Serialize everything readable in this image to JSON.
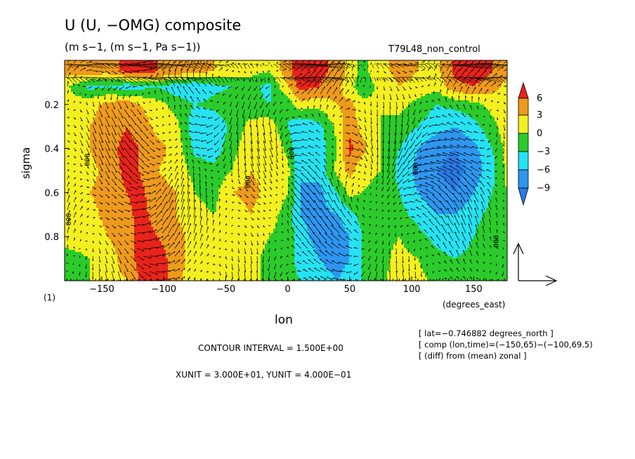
{
  "title": "U (U, −OMG) composite",
  "subtitle": "(m s−1, (m s−1, Pa s−1))",
  "run_label": "T79L48_non_control",
  "panel_label": "(1)",
  "contour_interval": "CONTOUR INTERVAL = 1.500E+00",
  "vector_units": "XUNIT = 3.000E+01, YUNIT = 4.000E−01",
  "info_lines": [
    "[ lat=−0.746882 degrees_north ]",
    "[ comp (lon,time)=(−150,65)−(−100,69.5)",
    "[ (diff) from (mean) zonal ]"
  ],
  "colors": {
    "lt_-9": "#2a7be6",
    "-9_-6": "#2f96f0",
    "-6_-3": "#26e2f2",
    "-3_0": "#2ccb2c",
    "0_3": "#f4f020",
    "3_6": "#ee9a1d",
    "gt_6": "#e8231c"
  },
  "chart_data": {
    "type": "heatmap",
    "title": "U (U, −OMG) composite",
    "subtitle": "(m s−1, (m s−1, Pa s−1))",
    "xlabel": "lon",
    "xunit_label": "(degrees_east)",
    "ylabel": "sigma",
    "xlim": [
      -180,
      177
    ],
    "ylim": [
      1.0,
      0.0
    ],
    "xticks": [
      -150,
      -100,
      -50,
      0,
      50,
      100,
      150
    ],
    "yticks": [
      0.2,
      0.4,
      0.6,
      0.8
    ],
    "colorbar": {
      "levels": [
        -9,
        -6,
        -3,
        0,
        3,
        6
      ],
      "labels": [
        "6",
        "3",
        "0",
        "−3",
        "−6",
        "−9"
      ]
    },
    "contour_label": "000",
    "lon_grid": [
      -180,
      -160,
      -145,
      -130,
      -120,
      -105,
      -90,
      -75,
      -60,
      -45,
      -30,
      -15,
      0,
      10,
      25,
      40,
      50,
      60,
      75,
      90,
      105,
      120,
      135,
      150,
      165,
      177
    ],
    "sigma_grid": [
      0.05,
      0.12,
      0.2,
      0.3,
      0.4,
      0.5,
      0.6,
      0.7,
      0.8,
      0.9,
      1.0
    ],
    "values": [
      [
        4,
        5,
        4,
        7,
        8,
        6,
        5,
        4,
        3,
        2,
        1,
        0,
        5,
        8,
        7,
        5,
        2,
        -1,
        2,
        4,
        3,
        2,
        7,
        8,
        6,
        4
      ],
      [
        1,
        -4,
        -3,
        -5,
        -4,
        -3,
        -5,
        -6,
        -4,
        -3,
        -2,
        -4,
        3,
        7,
        6,
        4,
        1,
        -2,
        1,
        3,
        2,
        1,
        5,
        6,
        4,
        2
      ],
      [
        1,
        2,
        4,
        5,
        3,
        1,
        -1,
        -3,
        -2,
        -1,
        -2,
        -3,
        -2,
        2,
        1,
        3,
        4,
        1,
        0,
        1,
        -1,
        -3,
        -2,
        -1,
        1,
        2
      ],
      [
        2,
        3,
        4,
        6,
        5,
        2,
        1,
        -5,
        -6,
        -2,
        1,
        2,
        -3,
        -6,
        -4,
        1,
        5,
        2,
        0,
        -1,
        -3,
        -5,
        -6,
        -4,
        -1,
        2
      ],
      [
        2,
        3,
        5,
        7,
        6,
        4,
        2,
        -4,
        -5,
        -1,
        2,
        3,
        -1,
        -6,
        -5,
        0,
        7,
        4,
        0,
        -3,
        -6,
        -8,
        -9,
        -7,
        -3,
        1
      ],
      [
        1,
        2,
        4,
        7,
        6,
        3,
        2,
        -1,
        -2,
        0,
        3,
        2,
        1,
        -6,
        -5,
        1,
        4,
        1,
        0,
        -4,
        -7,
        -9,
        -10,
        -8,
        -4,
        1
      ],
      [
        1,
        3,
        4,
        6,
        7,
        4,
        3,
        0,
        -1,
        3,
        4,
        2,
        0,
        -6,
        -7,
        -3,
        1,
        0,
        -1,
        -3,
        -6,
        -8,
        -9,
        -6,
        -3,
        0
      ],
      [
        2,
        2,
        4,
        5,
        7,
        5,
        3,
        1,
        0,
        1,
        3,
        1,
        -1,
        -6,
        -7,
        -6,
        -4,
        -2,
        -1,
        -2,
        -4,
        -6,
        -6,
        -4,
        -2,
        0
      ],
      [
        1,
        1,
        3,
        4,
        7,
        6,
        4,
        2,
        1,
        1,
        2,
        0,
        -1,
        -5,
        -7,
        -8,
        -6,
        -3,
        -1,
        0,
        -2,
        -4,
        -5,
        -3,
        -1,
        0
      ],
      [
        -1,
        0,
        2,
        4,
        7,
        8,
        4,
        2,
        2,
        1,
        1,
        -1,
        -2,
        -4,
        -6,
        -7,
        -6,
        -3,
        -1,
        1,
        0,
        -2,
        -3,
        -2,
        -1,
        -1
      ],
      [
        -1,
        0,
        2,
        3,
        6,
        8,
        4,
        1,
        2,
        1,
        1,
        -1,
        -2,
        -3,
        -5,
        -6,
        -5,
        -3,
        -1,
        2,
        1,
        -1,
        -3,
        -2,
        -1,
        -1
      ]
    ]
  }
}
